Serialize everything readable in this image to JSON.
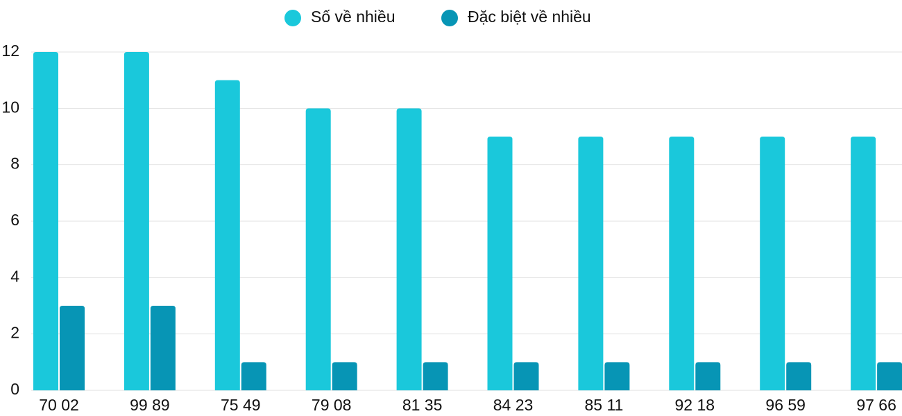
{
  "chart_data": {
    "type": "bar",
    "categories": [
      "70 02",
      "99 89",
      "75 49",
      "79 08",
      "81 35",
      "84 23",
      "85 11",
      "92 18",
      "96 59",
      "97 66"
    ],
    "series": [
      {
        "name": "Số về nhiều",
        "color": "#1ac8db",
        "values": [
          12,
          12,
          11,
          10,
          10,
          9,
          9,
          9,
          9,
          9
        ]
      },
      {
        "name": "Đặc biệt về nhiều",
        "color": "#0795b5",
        "values": [
          3,
          3,
          1,
          1,
          1,
          1,
          1,
          1,
          1,
          1
        ]
      }
    ],
    "ylim": [
      0,
      12
    ],
    "yticks": [
      0,
      2,
      4,
      6,
      8,
      10,
      12
    ],
    "grid": true,
    "legend": "top"
  }
}
